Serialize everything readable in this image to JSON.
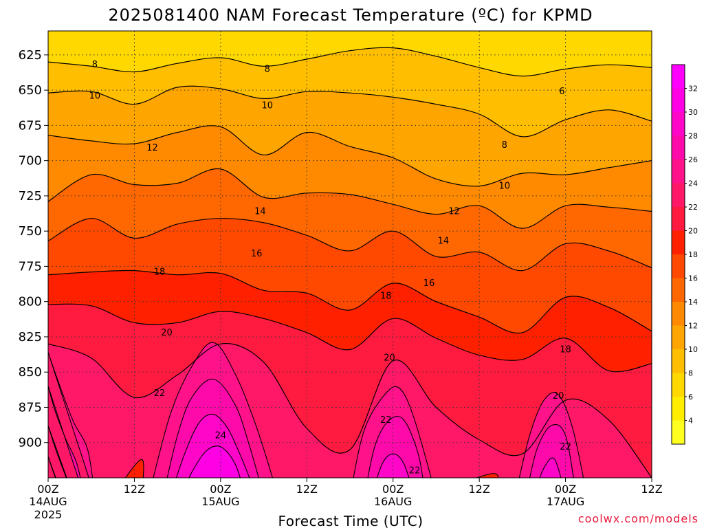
{
  "chart_data": {
    "type": "heatmap",
    "title": "2025081400 NAM Forecast Temperature (ºC) for KPMD",
    "xlabel": "Forecast Time (UTC)",
    "ylabel": "",
    "credit": "coolwx.com/models",
    "x_ticks": [
      {
        "hour": 0,
        "label": "00Z",
        "date": "14AUG",
        "year": "2025"
      },
      {
        "hour": 12,
        "label": "12Z"
      },
      {
        "hour": 24,
        "label": "00Z",
        "date": "15AUG"
      },
      {
        "hour": 36,
        "label": "12Z"
      },
      {
        "hour": 48,
        "label": "00Z",
        "date": "16AUG"
      },
      {
        "hour": 60,
        "label": "12Z"
      },
      {
        "hour": 72,
        "label": "00Z",
        "date": "17AUG"
      },
      {
        "hour": 84,
        "label": "12Z"
      }
    ],
    "xlim": [
      0,
      84
    ],
    "y_ticks": [
      625,
      650,
      675,
      700,
      725,
      750,
      775,
      800,
      825,
      850,
      875,
      900
    ],
    "ylim": [
      608,
      925
    ],
    "grid": true,
    "surface_pressure_mb": 938,
    "colorbar": {
      "ticks": [
        4,
        6,
        8,
        10,
        12,
        14,
        16,
        18,
        20,
        22,
        24,
        26,
        28,
        30,
        32
      ],
      "bands": [
        {
          "lo": 2,
          "hi": 4,
          "color": "#ffff20"
        },
        {
          "lo": 4,
          "hi": 6,
          "color": "#ffee00"
        },
        {
          "lo": 6,
          "hi": 8,
          "color": "#ffd800"
        },
        {
          "lo": 8,
          "hi": 10,
          "color": "#ffbe00"
        },
        {
          "lo": 10,
          "hi": 12,
          "color": "#ffa500"
        },
        {
          "lo": 12,
          "hi": 14,
          "color": "#ff8a00"
        },
        {
          "lo": 14,
          "hi": 16,
          "color": "#ff6800"
        },
        {
          "lo": 16,
          "hi": 18,
          "color": "#ff4800"
        },
        {
          "lo": 18,
          "hi": 20,
          "color": "#ff2000"
        },
        {
          "lo": 20,
          "hi": 22,
          "color": "#ff1a40"
        },
        {
          "lo": 22,
          "hi": 24,
          "color": "#ff1868"
        },
        {
          "lo": 24,
          "hi": 26,
          "color": "#ff128a"
        },
        {
          "lo": 26,
          "hi": 28,
          "color": "#ff0aaa"
        },
        {
          "lo": 28,
          "hi": 30,
          "color": "#ff06c8"
        },
        {
          "lo": 30,
          "hi": 32,
          "color": "#ff00e4"
        },
        {
          "lo": 32,
          "hi": 34,
          "color": "#ff00ff"
        }
      ]
    },
    "isotherms": [
      {
        "value": 8,
        "hours": [
          0,
          6,
          12,
          18,
          24,
          30,
          36,
          42,
          48,
          54,
          60,
          66,
          72,
          78,
          84
        ],
        "mb": [
          630,
          633,
          637,
          631,
          627,
          633,
          628,
          622,
          620,
          626,
          634,
          640,
          635,
          632,
          634
        ]
      },
      {
        "value": 10,
        "hours": [
          0,
          6,
          12,
          18,
          24,
          30,
          36,
          42,
          48,
          54,
          60,
          66,
          72,
          78,
          84
        ],
        "mb": [
          652,
          651,
          660,
          648,
          649,
          656,
          651,
          652,
          655,
          660,
          667,
          683,
          671,
          664,
          672
        ]
      },
      {
        "value": 12,
        "hours": [
          0,
          6,
          12,
          18,
          24,
          30,
          36,
          42,
          48,
          54,
          60,
          66,
          72,
          78,
          84
        ],
        "mb": [
          682,
          686,
          688,
          680,
          676,
          696,
          680,
          690,
          698,
          713,
          718,
          709,
          710,
          705,
          700
        ]
      },
      {
        "value": 14,
        "hours": [
          0,
          6,
          12,
          18,
          24,
          30,
          36,
          42,
          48,
          54,
          60,
          66,
          72,
          78,
          84
        ],
        "mb": [
          729,
          710,
          717,
          716,
          706,
          726,
          723,
          724,
          731,
          738,
          732,
          748,
          732,
          733,
          736
        ]
      },
      {
        "value": 16,
        "hours": [
          0,
          6,
          12,
          18,
          24,
          30,
          36,
          42,
          48,
          54,
          60,
          66,
          72,
          78,
          84
        ],
        "mb": [
          757,
          741,
          755,
          745,
          741,
          744,
          753,
          764,
          750,
          768,
          765,
          778,
          759,
          764,
          776
        ]
      },
      {
        "value": 18,
        "hours": [
          0,
          6,
          12,
          18,
          24,
          30,
          36,
          42,
          48,
          54,
          60,
          66,
          72,
          78,
          84
        ],
        "mb": [
          781,
          779,
          778,
          781,
          780,
          792,
          794,
          806,
          787,
          800,
          811,
          822,
          797,
          804,
          821
        ]
      },
      {
        "value": 20,
        "hours": [
          0,
          6,
          12,
          18,
          24,
          30,
          36,
          42,
          48,
          54,
          60,
          66,
          72,
          78,
          84
        ],
        "mb": [
          802,
          803,
          815,
          815,
          807,
          812,
          822,
          834,
          812,
          826,
          838,
          841,
          826,
          849,
          844
        ]
      },
      {
        "value": 22,
        "hours": [
          0,
          6,
          12,
          18,
          24,
          30,
          36,
          42,
          48,
          54,
          60,
          66,
          72,
          78,
          84
        ],
        "mb": [
          830,
          840,
          868,
          852,
          830,
          843,
          890,
          905,
          842,
          875,
          898,
          908,
          870,
          884,
          925
        ]
      }
    ],
    "warm_cells": [
      {
        "value": 24,
        "hours": [
          14,
          17,
          20,
          23,
          26,
          29,
          32
        ],
        "mb": [
          938,
          880,
          846,
          829,
          851,
          889,
          938
        ]
      },
      {
        "value": 26,
        "hours": [
          16,
          18,
          20,
          23,
          26,
          28,
          30
        ],
        "mb": [
          938,
          895,
          868,
          855,
          873,
          902,
          938
        ]
      },
      {
        "value": 28,
        "hours": [
          17,
          19,
          21,
          23,
          25,
          27,
          29
        ],
        "mb": [
          938,
          908,
          886,
          880,
          890,
          912,
          938
        ]
      },
      {
        "value": 30,
        "hours": [
          18.5,
          20,
          22,
          24,
          26,
          27.5
        ],
        "mb": [
          938,
          921,
          906,
          903,
          915,
          938
        ]
      },
      {
        "value": 24,
        "hours": [
          42,
          44,
          47,
          49,
          51,
          54
        ],
        "mb": [
          938,
          891,
          865,
          862,
          884,
          938
        ]
      },
      {
        "value": 26,
        "hours": [
          44,
          45.5,
          47.5,
          49.5,
          51.5,
          52.5
        ],
        "mb": [
          938,
          902,
          884,
          884,
          908,
          938
        ]
      },
      {
        "value": 28,
        "hours": [
          45,
          46.5,
          48,
          49.5,
          51
        ],
        "mb": [
          938,
          915,
          908,
          915,
          938
        ]
      },
      {
        "value": 24,
        "hours": [
          65,
          67,
          69,
          71,
          73,
          75
        ],
        "mb": [
          938,
          895,
          870,
          866,
          890,
          938
        ]
      },
      {
        "value": 26,
        "hours": [
          66.5,
          68,
          70,
          72,
          73.5
        ],
        "mb": [
          938,
          905,
          888,
          895,
          938
        ]
      },
      {
        "value": 28,
        "hours": [
          67.5,
          69,
          70.5,
          72
        ],
        "mb": [
          938,
          918,
          912,
          938
        ]
      },
      {
        "value": 24,
        "hours": [
          0,
          1.5,
          3.5,
          5.5,
          6.5
        ],
        "mb": [
          836,
          858,
          885,
          905,
          938
        ]
      },
      {
        "value": 26,
        "hours": [
          0,
          1,
          2.5,
          4,
          5
        ],
        "mb": [
          860,
          878,
          898,
          915,
          938
        ]
      },
      {
        "value": 28,
        "hours": [
          0,
          1,
          2,
          3.5
        ],
        "mb": [
          888,
          904,
          918,
          938
        ]
      },
      {
        "value": 30,
        "hours": [
          0,
          0.8,
          2
        ],
        "mb": [
          910,
          922,
          938
        ]
      }
    ],
    "cool_cells": [
      {
        "value": 20,
        "hours": [
          9,
          13,
          13
        ],
        "mb": [
          938,
          912,
          938
        ]
      },
      {
        "value": 20,
        "hours": [
          53,
          62,
          62
        ],
        "mb": [
          938,
          922,
          938
        ]
      }
    ],
    "contour_labels": [
      {
        "text": "8",
        "hour": 6.5,
        "mb": 632
      },
      {
        "text": "8",
        "hour": 30.5,
        "mb": 635
      },
      {
        "text": "6",
        "hours_note": "",
        "hour": 71.5,
        "mb": 651
      },
      {
        "text": "10",
        "hour": 6.5,
        "mb": 654
      },
      {
        "text": "10",
        "hour": 30.5,
        "mb": 661
      },
      {
        "text": "8",
        "hour": 63.5,
        "mb": 689
      },
      {
        "text": "12",
        "hour": 14.5,
        "mb": 691
      },
      {
        "text": "10",
        "hours_note": "",
        "hour": 63.5,
        "mb": 718
      },
      {
        "text": "12",
        "hour": 56.5,
        "mb": 736
      },
      {
        "text": "14",
        "hour": 29.5,
        "mb": 736
      },
      {
        "text": "14",
        "hour": 55,
        "mb": 757
      },
      {
        "text": "16",
        "hour": 29,
        "mb": 766
      },
      {
        "text": "16",
        "hour": 53,
        "mb": 787
      },
      {
        "text": "18",
        "hour": 15.5,
        "mb": 779
      },
      {
        "text": "18",
        "hour": 47,
        "mb": 796
      },
      {
        "text": "18",
        "hour": 72,
        "mb": 834
      },
      {
        "text": "20",
        "hour": 16.5,
        "mb": 822
      },
      {
        "text": "20",
        "hour": 47.5,
        "mb": 840
      },
      {
        "text": "20",
        "hour": 71,
        "mb": 867
      },
      {
        "text": "22",
        "hour": 15.5,
        "mb": 865
      },
      {
        "text": "22",
        "hour": 47,
        "mb": 884
      },
      {
        "text": "22",
        "hour": 51,
        "mb": 920
      },
      {
        "text": "22",
        "hour": 72,
        "mb": 903
      },
      {
        "text": "24",
        "hour": 24,
        "mb": 895
      }
    ],
    "colors": {
      "surface": "#a0522d",
      "grid": "#333333",
      "isotherm": "#000000"
    }
  }
}
